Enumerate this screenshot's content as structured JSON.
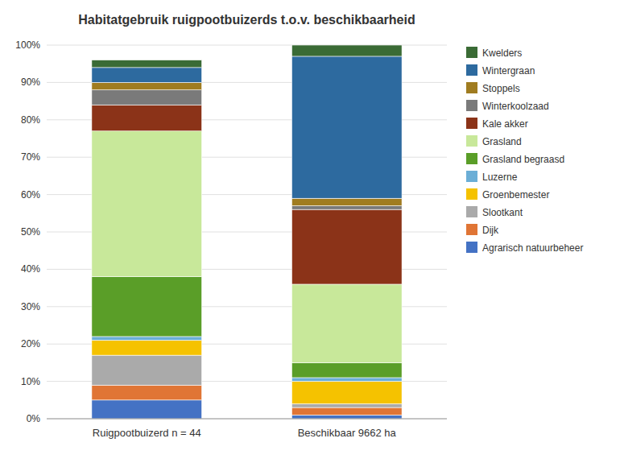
{
  "chart_data": {
    "type": "bar",
    "stacked": true,
    "title": "Habitatgebruik ruigpootbuizerds t.o.v. beschikbaarheid",
    "categories": [
      "Ruigpootbuizerd n = 44",
      "Beschikbaar 9662 ha"
    ],
    "series": [
      {
        "name": "Kwelders",
        "color": "#3a6b35",
        "values": [
          2,
          3
        ]
      },
      {
        "name": "Wintergraan",
        "color": "#2d6a9f",
        "values": [
          4,
          38
        ]
      },
      {
        "name": "Stoppels",
        "color": "#a07c20",
        "values": [
          2,
          2
        ]
      },
      {
        "name": "Winterkoolzaad",
        "color": "#7a7a7a",
        "values": [
          4,
          1
        ]
      },
      {
        "name": "Kale akker",
        "color": "#8b3318",
        "values": [
          7,
          20
        ]
      },
      {
        "name": "Grasland",
        "color": "#c8e89a",
        "values": [
          39,
          21
        ]
      },
      {
        "name": "Grasland begraasd",
        "color": "#5a9e28",
        "values": [
          16,
          4
        ]
      },
      {
        "name": "Luzerne",
        "color": "#6baed6",
        "values": [
          1,
          1
        ]
      },
      {
        "name": "Groenbemester",
        "color": "#f5c200",
        "values": [
          4,
          6
        ]
      },
      {
        "name": "Slootkant",
        "color": "#aaaaaa",
        "values": [
          8,
          1
        ]
      },
      {
        "name": "Dijk",
        "color": "#e07535",
        "values": [
          4,
          2
        ]
      },
      {
        "name": "Agrarisch natuurbeheer",
        "color": "#4472c4",
        "values": [
          5,
          1
        ]
      }
    ],
    "ylim": [
      0,
      100
    ],
    "yticks": [
      {
        "value": 0,
        "label": "0%"
      },
      {
        "value": 10,
        "label": "10%"
      },
      {
        "value": 20,
        "label": "20%"
      },
      {
        "value": 30,
        "label": "30%"
      },
      {
        "value": 40,
        "label": "40%"
      },
      {
        "value": 50,
        "label": "50%"
      },
      {
        "value": 60,
        "label": "60%"
      },
      {
        "value": 70,
        "label": "70%"
      },
      {
        "value": 80,
        "label": "80%"
      },
      {
        "value": 90,
        "label": "90%"
      },
      {
        "value": 100,
        "label": "100%"
      }
    ],
    "grid": true,
    "legend": "right"
  }
}
